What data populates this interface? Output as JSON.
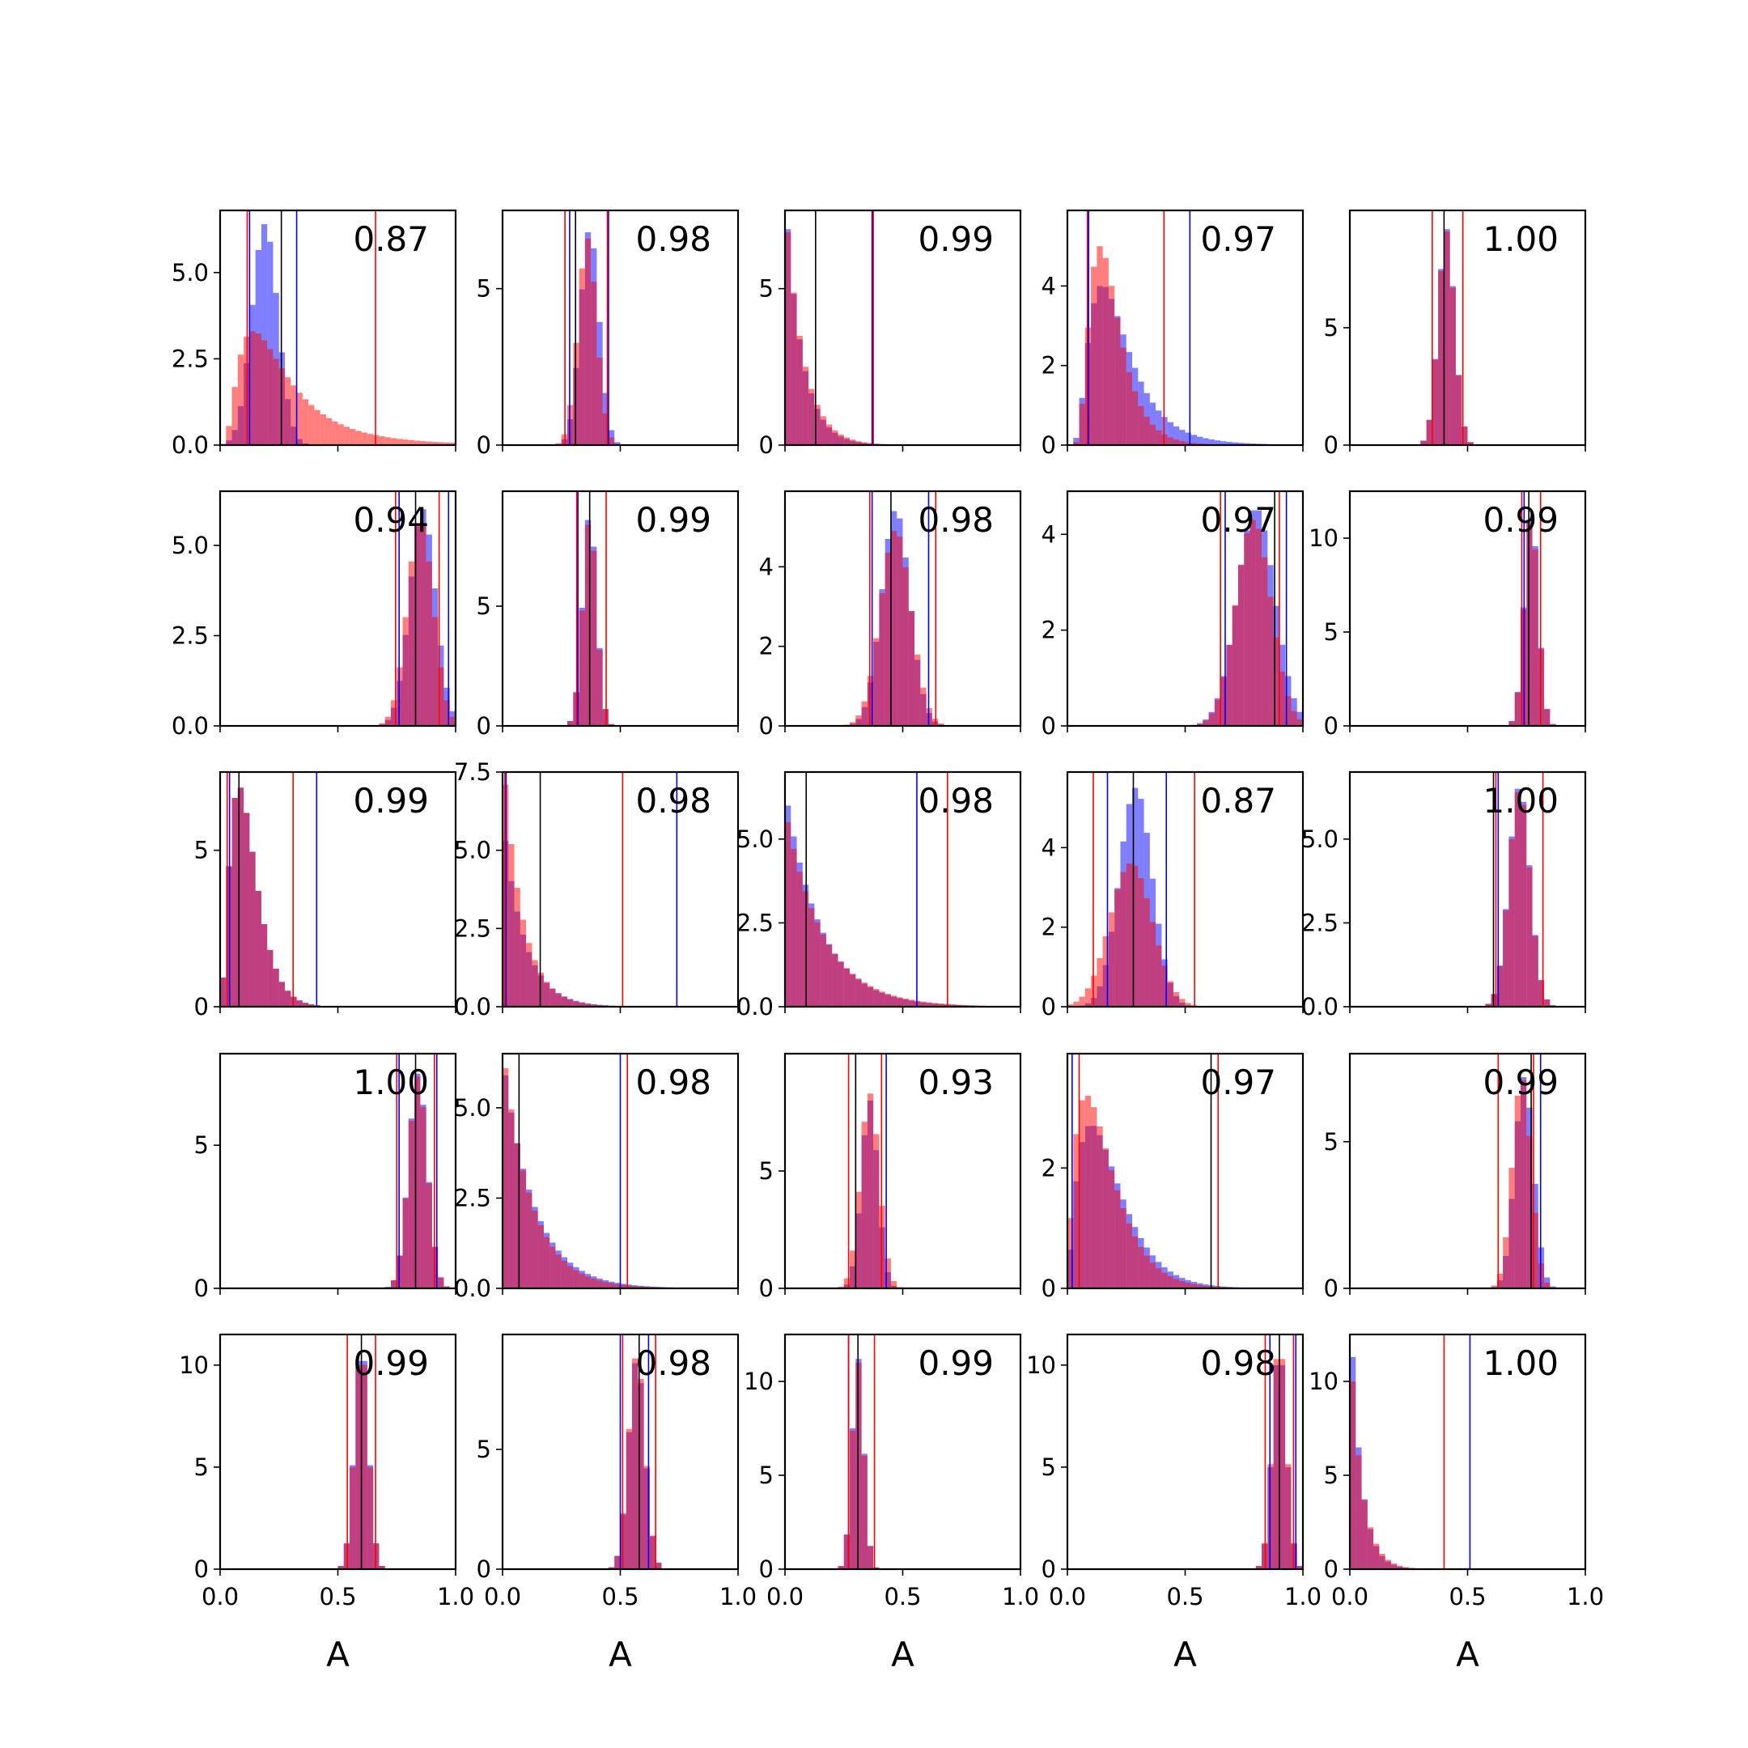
{
  "chart_data": {
    "type": "histogram-grid",
    "rows": 5,
    "cols": 5,
    "xlabel": "A",
    "xlim": [
      0,
      1
    ],
    "xticks": [
      0,
      0.5,
      1
    ],
    "xtick_labels": [
      "0.0",
      "0.5",
      "1.0"
    ],
    "series_colors": {
      "blue": "#0000ff",
      "red": "#ff0000",
      "black": "#000000"
    },
    "panels": [
      {
        "label": "0.87",
        "ymax": 6.8,
        "yticks": [
          0,
          2.5,
          5
        ],
        "ytick_labels": [
          "0.0",
          "2.5",
          "5.0"
        ],
        "blue": {
          "type": "norm",
          "mu": 0.19,
          "sd": 0.055,
          "peak": 6.4
        },
        "red": {
          "type": "lognorm",
          "median": 0.23,
          "s": 0.7,
          "peak": 3.3
        },
        "lines": {
          "blue": [
            0.125,
            0.325
          ],
          "red": [
            0.115,
            0.66
          ],
          "black": [
            0.26
          ]
        }
      },
      {
        "label": "0.98",
        "ymax": 7.5,
        "yticks": [
          0,
          5
        ],
        "ytick_labels": [
          "0",
          "5"
        ],
        "blue": {
          "type": "norm",
          "mu": 0.37,
          "sd": 0.04,
          "peak": 6.8
        },
        "red": {
          "type": "norm",
          "mu": 0.36,
          "sd": 0.04,
          "peak": 6.6
        },
        "lines": {
          "blue": [
            0.285,
            0.45
          ],
          "red": [
            0.265,
            0.445
          ],
          "black": [
            0.31
          ]
        }
      },
      {
        "label": "0.99",
        "ymax": 7.5,
        "yticks": [
          0,
          5
        ],
        "ytick_labels": [
          "0",
          "5"
        ],
        "blue": {
          "type": "exp",
          "scale": 0.07,
          "peak": 6.9
        },
        "red": {
          "type": "exp",
          "scale": 0.075,
          "peak": 6.8
        },
        "lines": {
          "blue": [
            0.37
          ],
          "red": [
            0.375
          ],
          "black": [
            0.13
          ]
        }
      },
      {
        "label": "0.97",
        "ymax": 5.9,
        "yticks": [
          0,
          2,
          4
        ],
        "ytick_labels": [
          "0",
          "2",
          "4"
        ],
        "blue": {
          "type": "lognorm",
          "median": 0.2,
          "s": 0.55,
          "peak": 4.0
        },
        "red": {
          "type": "lognorm",
          "median": 0.17,
          "s": 0.45,
          "peak": 5.0
        },
        "lines": {
          "blue": [
            0.09,
            0.52
          ],
          "red": [
            0.085,
            0.41
          ],
          "black": []
        }
      },
      {
        "label": "1.00",
        "ymax": 10.0,
        "yticks": [
          0,
          5
        ],
        "ytick_labels": [
          "0",
          "5"
        ],
        "blue": {
          "type": "norm",
          "mu": 0.41,
          "sd": 0.035,
          "peak": 9.2
        },
        "red": {
          "type": "norm",
          "mu": 0.41,
          "sd": 0.035,
          "peak": 9.1
        },
        "lines": {
          "blue": [],
          "red": [
            0.35,
            0.48
          ],
          "black": [
            0.4
          ]
        }
      },
      {
        "label": "0.94",
        "ymax": 6.5,
        "yticks": [
          0,
          2.5,
          5
        ],
        "ytick_labels": [
          "0.0",
          "2.5",
          "5.0"
        ],
        "blue": {
          "type": "norm",
          "mu": 0.86,
          "sd": 0.055,
          "peak": 6.0
        },
        "red": {
          "type": "norm",
          "mu": 0.85,
          "sd": 0.055,
          "peak": 5.6
        },
        "lines": {
          "blue": [
            0.76,
            0.97
          ],
          "red": [
            0.745,
            0.93
          ],
          "black": [
            0.83
          ]
        }
      },
      {
        "label": "0.99",
        "ymax": 9.8,
        "yticks": [
          0,
          5
        ],
        "ytick_labels": [
          "0",
          "5"
        ],
        "blue": {
          "type": "norm",
          "mu": 0.37,
          "sd": 0.03,
          "peak": 8.6
        },
        "red": {
          "type": "norm",
          "mu": 0.37,
          "sd": 0.03,
          "peak": 8.4
        },
        "lines": {
          "blue": [
            0.32
          ],
          "red": [
            0.315,
            0.44
          ],
          "black": [
            0.37
          ]
        }
      },
      {
        "label": "0.98",
        "ymax": 5.9,
        "yticks": [
          0,
          2,
          4
        ],
        "ytick_labels": [
          "0",
          "2",
          "4"
        ],
        "blue": {
          "type": "norm",
          "mu": 0.47,
          "sd": 0.06,
          "peak": 5.4
        },
        "red": {
          "type": "norm",
          "mu": 0.47,
          "sd": 0.065,
          "peak": 4.9
        },
        "lines": {
          "blue": [
            0.37,
            0.61
          ],
          "red": [
            0.36,
            0.64
          ],
          "black": [
            0.45
          ]
        }
      },
      {
        "label": "0.97",
        "ymax": 4.9,
        "yticks": [
          0,
          2,
          4
        ],
        "ytick_labels": [
          "0",
          "2",
          "4"
        ],
        "blue": {
          "type": "norm",
          "mu": 0.8,
          "sd": 0.08,
          "peak": 4.5
        },
        "red": {
          "type": "norm",
          "mu": 0.79,
          "sd": 0.075,
          "peak": 4.3
        },
        "lines": {
          "blue": [
            0.67,
            0.93
          ],
          "red": [
            0.65,
            0.9
          ],
          "black": [
            0.88
          ]
        }
      },
      {
        "label": "0.99",
        "ymax": 12.5,
        "yticks": [
          0,
          5,
          10
        ],
        "ytick_labels": [
          "0",
          "5",
          "10"
        ],
        "blue": {
          "type": "norm",
          "mu": 0.77,
          "sd": 0.03,
          "peak": 11.0
        },
        "red": {
          "type": "norm",
          "mu": 0.77,
          "sd": 0.03,
          "peak": 10.8
        },
        "lines": {
          "blue": [
            0.74
          ],
          "red": [
            0.73,
            0.81
          ],
          "black": [
            0.76
          ]
        }
      },
      {
        "label": "0.99",
        "ymax": 7.5,
        "yticks": [
          0,
          5
        ],
        "ytick_labels": [
          "0",
          "5"
        ],
        "blue": {
          "type": "gamma",
          "mode": 0.08,
          "k": 3,
          "peak": 7.0
        },
        "red": {
          "type": "gamma",
          "mode": 0.08,
          "k": 3,
          "peak": 7.0
        },
        "lines": {
          "blue": [
            0.04,
            0.41
          ],
          "red": [
            0.03,
            0.31
          ],
          "black": [
            0.08
          ]
        }
      },
      {
        "label": "0.98",
        "ymax": 7.5,
        "yticks": [
          0,
          2.5,
          5,
          7.5
        ],
        "ytick_labels": [
          "0.0",
          "2.5",
          "5.0",
          "7.5"
        ],
        "blue": {
          "type": "exp",
          "scale": 0.09,
          "peak": 5.3
        },
        "red": {
          "type": "exp",
          "scale": 0.08,
          "peak": 7.1
        },
        "lines": {
          "blue": [
            0.015,
            0.74
          ],
          "red": [
            0.01,
            0.51
          ],
          "black": [
            0.16
          ]
        }
      },
      {
        "label": "0.98",
        "ymax": 7.0,
        "yticks": [
          0,
          2.5,
          5
        ],
        "ytick_labels": [
          "0.0",
          "2.5",
          "5.0"
        ],
        "blue": {
          "type": "exp",
          "scale": 0.15,
          "peak": 6.0
        },
        "red": {
          "type": "exp",
          "scale": 0.16,
          "peak": 5.5
        },
        "lines": {
          "blue": [
            0.56
          ],
          "red": [
            0.69
          ],
          "black": [
            0.09
          ]
        }
      },
      {
        "label": "0.87",
        "ymax": 5.9,
        "yticks": [
          0,
          2,
          4
        ],
        "ytick_labels": [
          "0",
          "2",
          "4"
        ],
        "blue": {
          "type": "norm",
          "mu": 0.29,
          "sd": 0.07,
          "peak": 5.5
        },
        "red": {
          "type": "norm",
          "mu": 0.27,
          "sd": 0.09,
          "peak": 3.6
        },
        "lines": {
          "blue": [
            0.17,
            0.42
          ],
          "red": [
            0.11,
            0.54
          ],
          "black": [
            0.28
          ]
        }
      },
      {
        "label": "1.00",
        "ymax": 7.0,
        "yticks": [
          0,
          2.5,
          5
        ],
        "ytick_labels": [
          "0.0",
          "2.5",
          "5.0"
        ],
        "blue": {
          "type": "norm",
          "mu": 0.72,
          "sd": 0.045,
          "peak": 6.5
        },
        "red": {
          "type": "norm",
          "mu": 0.72,
          "sd": 0.045,
          "peak": 6.4
        },
        "lines": {
          "blue": [
            0.63
          ],
          "red": [
            0.62,
            0.82
          ],
          "black": [
            0.61
          ]
        }
      },
      {
        "label": "1.00",
        "ymax": 8.2,
        "yticks": [
          0,
          5
        ],
        "ytick_labels": [
          "0",
          "5"
        ],
        "blue": {
          "type": "norm",
          "mu": 0.84,
          "sd": 0.04,
          "peak": 7.5
        },
        "red": {
          "type": "norm",
          "mu": 0.84,
          "sd": 0.04,
          "peak": 7.4
        },
        "lines": {
          "blue": [
            0.76,
            0.92
          ],
          "red": [
            0.75,
            0.91
          ],
          "black": [
            0.83
          ]
        }
      },
      {
        "label": "0.98",
        "ymax": 6.5,
        "yticks": [
          0,
          2.5,
          5
        ],
        "ytick_labels": [
          "0.0",
          "2.5",
          "5.0"
        ],
        "blue": {
          "type": "exp",
          "scale": 0.13,
          "peak": 5.9
        },
        "red": {
          "type": "exp",
          "scale": 0.12,
          "peak": 6.1
        },
        "lines": {
          "blue": [
            0.5
          ],
          "red": [
            0.53
          ],
          "black": [
            0.07
          ]
        }
      },
      {
        "label": "0.93",
        "ymax": 10.0,
        "yticks": [
          0,
          5
        ],
        "ytick_labels": [
          "0",
          "5"
        ],
        "blue": {
          "type": "norm",
          "mu": 0.36,
          "sd": 0.035,
          "peak": 8.0
        },
        "red": {
          "type": "norm",
          "mu": 0.36,
          "sd": 0.04,
          "peak": 8.3
        },
        "lines": {
          "blue": [
            0.3,
            0.43
          ],
          "red": [
            0.27,
            0.41
          ],
          "black": [
            0.3
          ]
        }
      },
      {
        "label": "0.97",
        "ymax": 3.9,
        "yticks": [
          0,
          2
        ],
        "ytick_labels": [
          "0",
          "2"
        ],
        "blue": {
          "type": "gamma",
          "mode": 0.1,
          "k": 2.2,
          "peak": 2.7
        },
        "red": {
          "type": "gamma",
          "mode": 0.08,
          "k": 2.0,
          "peak": 3.2
        },
        "lines": {
          "blue": [
            0.02
          ],
          "red": [
            0.05,
            0.64
          ],
          "black": [
            0.61
          ]
        }
      },
      {
        "label": "0.99",
        "ymax": 8.0,
        "yticks": [
          0,
          5
        ],
        "ytick_labels": [
          "0",
          "5"
        ],
        "blue": {
          "type": "norm",
          "mu": 0.74,
          "sd": 0.04,
          "peak": 7.2
        },
        "red": {
          "type": "norm",
          "mu": 0.73,
          "sd": 0.04,
          "peak": 7.1
        },
        "lines": {
          "blue": [
            0.81
          ],
          "red": [
            0.63,
            0.78
          ],
          "black": [
            0.77
          ]
        }
      },
      {
        "label": "0.99",
        "ymax": 11.5,
        "yticks": [
          0,
          5,
          10
        ],
        "ytick_labels": [
          "0",
          "5",
          "10"
        ],
        "blue": {
          "type": "norm",
          "mu": 0.6,
          "sd": 0.03,
          "peak": 10.2
        },
        "red": {
          "type": "norm",
          "mu": 0.6,
          "sd": 0.03,
          "peak": 10.0
        },
        "lines": {
          "blue": [],
          "red": [
            0.54,
            0.66
          ],
          "black": [
            0.6
          ]
        }
      },
      {
        "label": "0.98",
        "ymax": 9.8,
        "yticks": [
          0,
          5
        ],
        "ytick_labels": [
          "0",
          "5"
        ],
        "blue": {
          "type": "norm",
          "mu": 0.57,
          "sd": 0.035,
          "peak": 8.6
        },
        "red": {
          "type": "norm",
          "mu": 0.57,
          "sd": 0.035,
          "peak": 8.8
        },
        "lines": {
          "blue": [
            0.5,
            0.62
          ],
          "red": [
            0.51,
            0.65
          ],
          "black": [
            0.58
          ]
        }
      },
      {
        "label": "0.99",
        "ymax": 12.5,
        "yticks": [
          0,
          5,
          10
        ],
        "ytick_labels": [
          "0",
          "5",
          "10"
        ],
        "blue": {
          "type": "norm",
          "mu": 0.31,
          "sd": 0.025,
          "peak": 11.2
        },
        "red": {
          "type": "norm",
          "mu": 0.31,
          "sd": 0.025,
          "peak": 11.0
        },
        "lines": {
          "blue": [
            0.27
          ],
          "red": [
            0.27,
            0.38
          ],
          "black": [
            0.31
          ]
        }
      },
      {
        "label": "0.98",
        "ymax": 11.5,
        "yticks": [
          0,
          5,
          10
        ],
        "ytick_labels": [
          "0",
          "5",
          "10"
        ],
        "blue": {
          "type": "norm",
          "mu": 0.9,
          "sd": 0.03,
          "peak": 10.0
        },
        "red": {
          "type": "norm",
          "mu": 0.9,
          "sd": 0.03,
          "peak": 10.3
        },
        "lines": {
          "blue": [
            0.86,
            0.97
          ],
          "red": [
            0.84,
            0.96
          ],
          "black": [
            0.9
          ]
        }
      },
      {
        "label": "1.00",
        "ymax": 12.5,
        "yticks": [
          0,
          5,
          10
        ],
        "ytick_labels": [
          "0",
          "5",
          "10"
        ],
        "blue": {
          "type": "exp",
          "scale": 0.045,
          "peak": 11.3
        },
        "red": {
          "type": "exp",
          "scale": 0.05,
          "peak": 10.0
        },
        "lines": {
          "blue": [
            0.51
          ],
          "red": [
            0.4
          ],
          "black": []
        }
      }
    ]
  }
}
